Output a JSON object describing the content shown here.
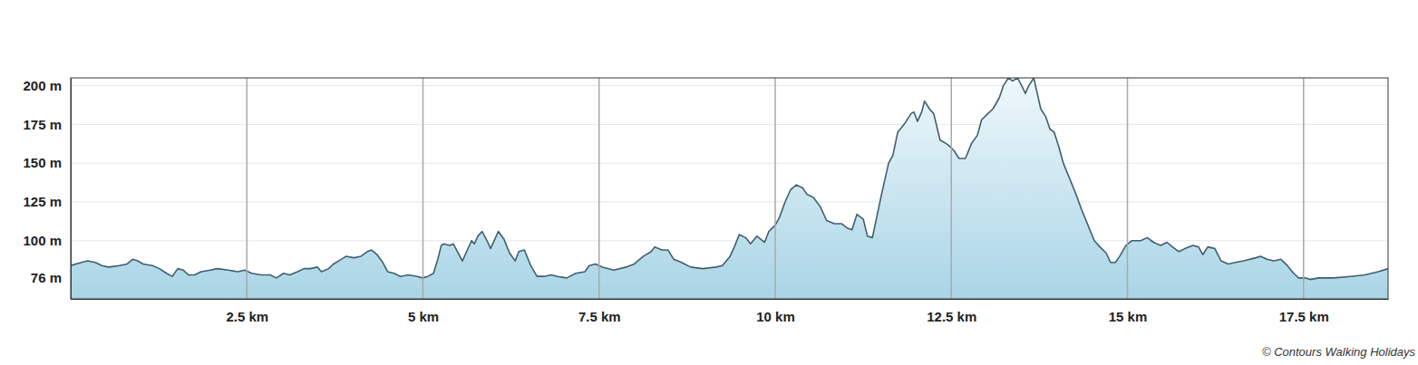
{
  "chart_data": {
    "type": "area",
    "color": "#3f5f6d",
    "grid": true,
    "xlim": [
      0,
      18.7
    ],
    "ylim": [
      62.5,
      205
    ],
    "xticks": [
      {
        "value": 2.5,
        "label": "2.5 km"
      },
      {
        "value": 5,
        "label": "5 km"
      },
      {
        "value": 7.5,
        "label": "7.5 km"
      },
      {
        "value": 10,
        "label": "10 km"
      },
      {
        "value": 12.5,
        "label": "12.5 km"
      },
      {
        "value": 15,
        "label": "15 km"
      },
      {
        "value": 17.5,
        "label": "17.5 km"
      }
    ],
    "yticks": [
      {
        "value": 76,
        "label": "76 m"
      },
      {
        "value": 100,
        "label": "100 m"
      },
      {
        "value": 125,
        "label": "125 m"
      },
      {
        "value": 150,
        "label": "150 m"
      },
      {
        "value": 175,
        "label": "175 m"
      },
      {
        "value": 200,
        "label": "200 m"
      }
    ],
    "annotations": [
      "© Contours Walking Holidays"
    ],
    "x": [
      0,
      0.15,
      0.24,
      0.35,
      0.44,
      0.54,
      0.69,
      0.8,
      0.88,
      0.95,
      1.03,
      1.16,
      1.26,
      1.36,
      1.44,
      1.52,
      1.6,
      1.67,
      1.76,
      1.85,
      1.98,
      2.08,
      2.24,
      2.37,
      2.47,
      2.57,
      2.7,
      2.83,
      2.92,
      3.02,
      3.11,
      3.22,
      3.31,
      3.4,
      3.5,
      3.56,
      3.66,
      3.73,
      3.84,
      3.91,
      4.02,
      4.12,
      4.21,
      4.27,
      4.35,
      4.43,
      4.5,
      4.59,
      4.68,
      4.79,
      4.92,
      4.99,
      5.07,
      5.15,
      5.21,
      5.26,
      5.3,
      5.38,
      5.43,
      5.5,
      5.56,
      5.62,
      5.69,
      5.73,
      5.78,
      5.84,
      5.91,
      5.96,
      6.02,
      6.07,
      6.15,
      6.23,
      6.31,
      6.36,
      6.44,
      6.53,
      6.62,
      6.72,
      6.82,
      6.91,
      7.04,
      7.17,
      7.3,
      7.36,
      7.45,
      7.55,
      7.71,
      7.88,
      8.0,
      8.13,
      8.24,
      8.29,
      8.39,
      8.48,
      8.56,
      8.67,
      8.8,
      8.97,
      9.16,
      9.25,
      9.36,
      9.42,
      9.49,
      9.58,
      9.65,
      9.74,
      9.85,
      9.91,
      10.0,
      10.06,
      10.14,
      10.22,
      10.3,
      10.39,
      10.45,
      10.54,
      10.64,
      10.73,
      10.84,
      10.94,
      11.03,
      11.09,
      11.16,
      11.25,
      11.31,
      11.38,
      11.44,
      11.51,
      11.61,
      11.67,
      11.74,
      11.83,
      11.93,
      11.97,
      12.02,
      12.08,
      12.12,
      12.19,
      12.25,
      12.34,
      12.45,
      12.54,
      12.61,
      12.7,
      12.79,
      12.87,
      12.93,
      13.02,
      13.09,
      13.18,
      13.24,
      13.31,
      13.37,
      13.44,
      13.51,
      13.55,
      13.6,
      13.67,
      13.72,
      13.77,
      13.84,
      13.9,
      13.96,
      14.03,
      14.09,
      14.18,
      14.27,
      14.35,
      14.44,
      14.53,
      14.61,
      14.7,
      14.76,
      14.83,
      14.89,
      14.98,
      15.06,
      15.19,
      15.28,
      15.37,
      15.47,
      15.56,
      15.64,
      15.73,
      15.82,
      15.93,
      16.01,
      16.07,
      16.14,
      16.24,
      16.33,
      16.43,
      16.53,
      16.65,
      16.82,
      16.89,
      16.98,
      17.08,
      17.18,
      17.27,
      17.36,
      17.43,
      17.53,
      17.59,
      17.72,
      17.92,
      18.17,
      18.37,
      18.56,
      18.7
    ],
    "values": [
      84,
      86,
      87,
      86,
      84,
      83,
      84,
      85,
      88,
      87,
      85,
      84,
      82,
      79,
      77,
      82,
      81,
      78,
      78,
      80,
      81,
      82,
      81,
      80,
      81,
      79,
      78,
      78,
      76,
      79,
      78,
      80,
      82,
      82,
      83,
      80,
      82,
      85,
      88,
      90,
      89,
      90,
      93,
      94,
      91,
      86,
      80,
      79,
      77,
      78,
      77,
      76,
      77,
      79,
      88,
      97,
      98,
      97,
      98,
      92,
      87,
      93,
      100,
      98,
      103,
      106,
      100,
      95,
      101,
      106,
      101,
      92,
      87,
      93,
      94,
      84,
      77,
      77,
      78,
      77,
      76,
      79,
      80,
      84,
      85,
      83,
      81,
      83,
      85,
      90,
      93,
      96,
      94,
      94,
      88,
      86,
      83,
      82,
      83,
      84,
      90,
      96,
      104,
      102,
      98,
      103,
      99,
      106,
      110,
      115,
      125,
      133,
      136,
      134,
      130,
      128,
      122,
      113,
      111,
      111,
      108,
      107,
      117,
      114,
      103,
      102,
      115,
      130,
      150,
      155,
      170,
      175,
      182,
      183,
      177,
      183,
      190,
      185,
      182,
      165,
      162,
      158,
      153,
      153,
      163,
      168,
      178,
      182,
      185,
      192,
      200,
      205,
      203,
      205,
      199,
      195,
      200,
      205,
      195,
      185,
      180,
      172,
      170,
      160,
      150,
      140,
      130,
      120,
      110,
      100,
      96,
      92,
      86,
      86,
      90,
      97,
      100,
      100,
      102,
      99,
      97,
      99,
      96,
      93,
      95,
      97,
      96,
      91,
      96,
      95,
      87,
      85,
      86,
      87,
      89,
      90,
      88,
      87,
      88,
      84,
      79,
      76,
      76,
      75,
      76,
      76,
      77,
      78,
      80,
      82
    ]
  }
}
